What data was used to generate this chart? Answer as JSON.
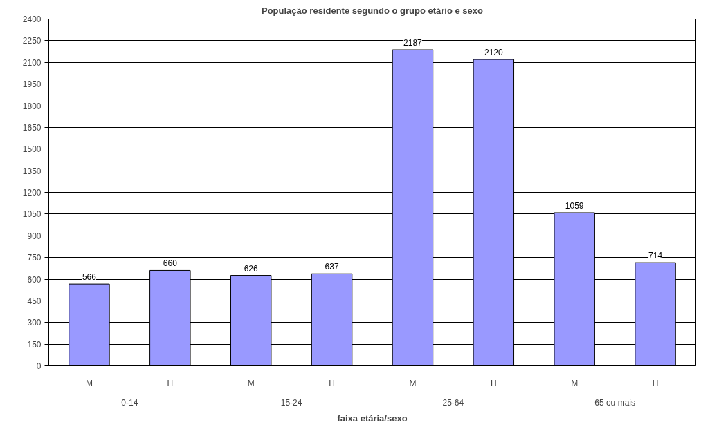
{
  "chart_data": {
    "type": "bar",
    "title": "População residente segundo o grupo etário e sexo",
    "xlabel": "faixa etária/sexo",
    "categories": [
      "M",
      "H",
      "M",
      "H",
      "M",
      "H",
      "M",
      "H"
    ],
    "values": [
      566,
      660,
      626,
      637,
      2187,
      2120,
      1059,
      714
    ],
    "color": "#9999ff",
    "annotations": [
      "0-14",
      "15-24",
      "25-64",
      "65 ou mais"
    ],
    "ylim": [
      0,
      2400
    ],
    "yticks": [
      0,
      150,
      300,
      450,
      600,
      750,
      900,
      1050,
      1200,
      1350,
      1500,
      1650,
      1800,
      1950,
      2100,
      2250,
      2400
    ],
    "grid": "y",
    "data_labels": true
  }
}
